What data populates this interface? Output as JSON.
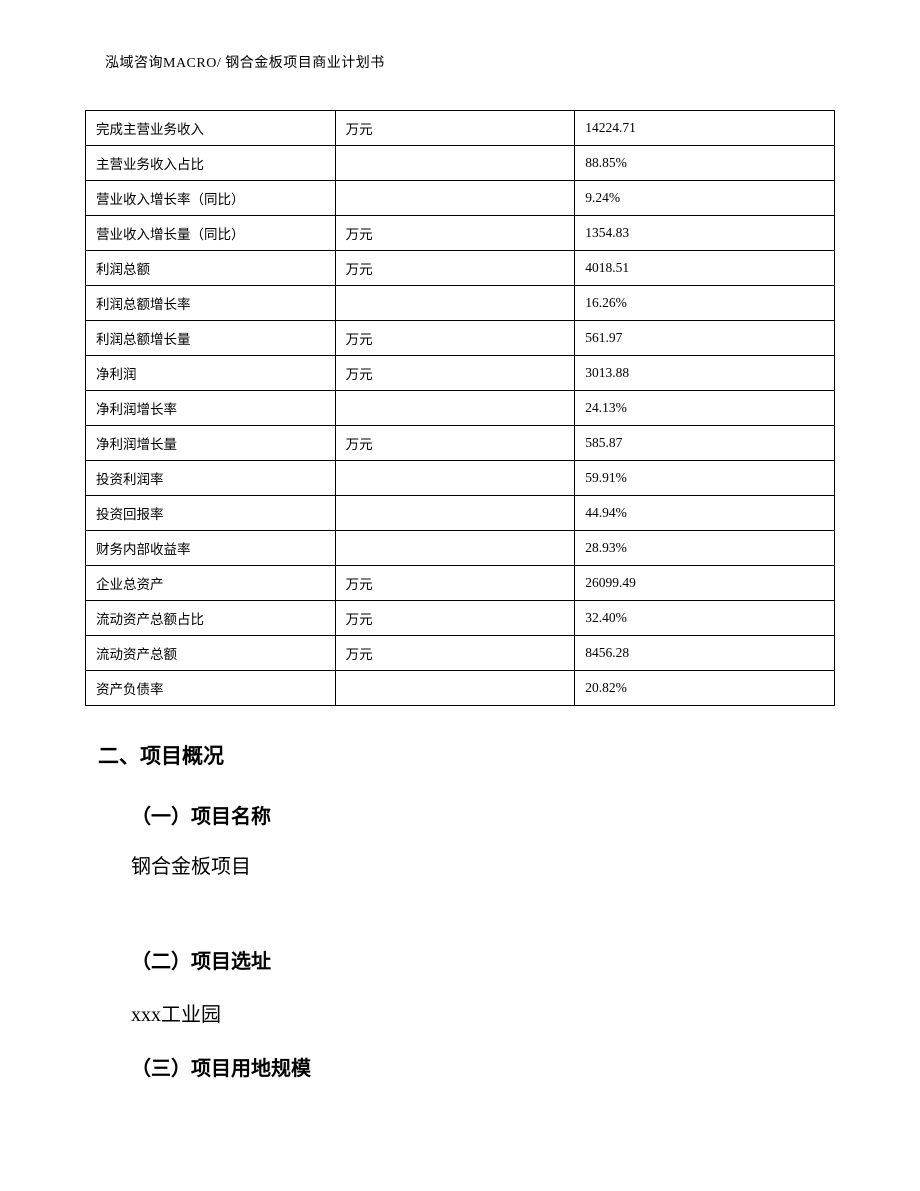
{
  "header_text": "泓域咨询MACRO/ 钢合金板项目商业计划书",
  "table": {
    "rows": [
      {
        "label": "完成主营业务收入",
        "unit": "万元",
        "value": "14224.71"
      },
      {
        "label": "主营业务收入占比",
        "unit": "",
        "value": "88.85%"
      },
      {
        "label": "营业收入增长率（同比）",
        "unit": "",
        "value": "9.24%"
      },
      {
        "label": "营业收入增长量（同比）",
        "unit": "万元",
        "value": "1354.83"
      },
      {
        "label": "利润总额",
        "unit": "万元",
        "value": "4018.51"
      },
      {
        "label": "利润总额增长率",
        "unit": "",
        "value": "16.26%"
      },
      {
        "label": "利润总额增长量",
        "unit": "万元",
        "value": "561.97"
      },
      {
        "label": "净利润",
        "unit": "万元",
        "value": "3013.88"
      },
      {
        "label": "净利润增长率",
        "unit": "",
        "value": "24.13%"
      },
      {
        "label": "净利润增长量",
        "unit": "万元",
        "value": "585.87"
      },
      {
        "label": "投资利润率",
        "unit": "",
        "value": "59.91%"
      },
      {
        "label": "投资回报率",
        "unit": "",
        "value": "44.94%"
      },
      {
        "label": "财务内部收益率",
        "unit": "",
        "value": "28.93%"
      },
      {
        "label": "企业总资产",
        "unit": "万元",
        "value": "26099.49"
      },
      {
        "label": "流动资产总额占比",
        "unit": "万元",
        "value": "32.40%"
      },
      {
        "label": "流动资产总额",
        "unit": "万元",
        "value": "8456.28"
      },
      {
        "label": "资产负债率",
        "unit": "",
        "value": "20.82%"
      }
    ]
  },
  "sections": {
    "heading_2": "二、项目概况",
    "sub_1": "（一）项目名称",
    "body_1": "钢合金板项目",
    "sub_2": "（二）项目选址",
    "body_2": "xxx工业园",
    "sub_3": "（三）项目用地规模"
  }
}
